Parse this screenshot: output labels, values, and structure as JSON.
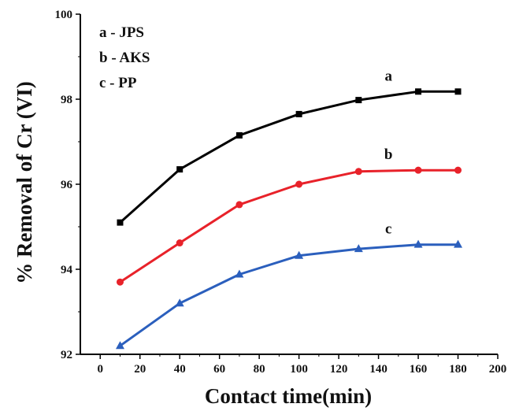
{
  "chart_data": {
    "type": "line",
    "title": "",
    "xlabel": "Contact time(min)",
    "ylabel": "% Removal of Cr (VI)",
    "xlim": [
      -10,
      200
    ],
    "ylim": [
      92,
      100
    ],
    "xticks": [
      0,
      20,
      40,
      60,
      80,
      100,
      120,
      140,
      160,
      180,
      200
    ],
    "yticks": [
      92,
      94,
      96,
      98,
      100
    ],
    "grid": false,
    "legend_position": "top-left",
    "legend": [
      "a - JPS",
      "b - AKS",
      "c - PP"
    ],
    "series": [
      {
        "label": "a",
        "color": "#000000",
        "marker": "square",
        "x": [
          10,
          40,
          70,
          100,
          130,
          160,
          180
        ],
        "y": [
          95.1,
          96.35,
          97.15,
          97.65,
          97.98,
          98.18,
          98.18
        ]
      },
      {
        "label": "b",
        "color": "#e8222a",
        "marker": "circle",
        "x": [
          10,
          40,
          70,
          100,
          130,
          160,
          180
        ],
        "y": [
          93.7,
          94.62,
          95.52,
          96.0,
          96.3,
          96.33,
          96.33
        ]
      },
      {
        "label": "c",
        "color": "#2b5fbd",
        "marker": "triangle",
        "x": [
          10,
          40,
          70,
          100,
          130,
          160,
          180
        ],
        "y": [
          92.2,
          93.2,
          93.88,
          94.32,
          94.48,
          94.58,
          94.58
        ]
      }
    ]
  }
}
